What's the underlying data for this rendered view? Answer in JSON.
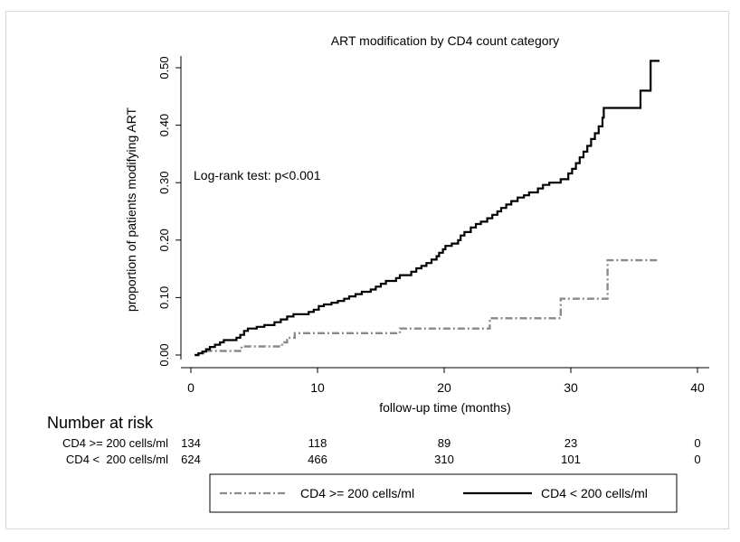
{
  "chart_data": {
    "type": "line",
    "subtype": "kaplan-meier-cumulative-incidence",
    "title": "ART modification by CD4 count category",
    "xlabel": "follow-up time (months)",
    "ylabel": "proportion of patients modifying ART",
    "xlim": [
      0,
      40
    ],
    "ylim": [
      0,
      0.5
    ],
    "x_ticks": [
      0,
      10,
      20,
      30,
      40
    ],
    "y_ticks": [
      0.0,
      0.1,
      0.2,
      0.3,
      0.4,
      0.5
    ],
    "x_tick_labels": [
      "0",
      "10",
      "20",
      "30",
      "40"
    ],
    "y_tick_labels": [
      "0.00",
      "0.10",
      "0.20",
      "0.30",
      "0.40",
      "0.50"
    ],
    "annotation": "Log-rank test: p<0.001",
    "series": [
      {
        "name": "CD4 >= 200 cells/ml",
        "style": "dash-dot",
        "color": "#8a8a8a",
        "steps": [
          [
            0.3,
            0.0
          ],
          [
            0.6,
            0.003
          ],
          [
            1.0,
            0.007
          ],
          [
            4.0,
            0.015
          ],
          [
            7.2,
            0.022
          ],
          [
            7.6,
            0.03
          ],
          [
            8.2,
            0.038
          ],
          [
            16.5,
            0.046
          ],
          [
            23.6,
            0.064
          ],
          [
            29.2,
            0.098
          ],
          [
            32.9,
            0.165
          ],
          [
            37.0,
            0.165
          ]
        ]
      },
      {
        "name": "CD4 < 200 cells/ml",
        "style": "solid",
        "color": "#000000",
        "steps": [
          [
            0.3,
            0.0
          ],
          [
            0.6,
            0.003
          ],
          [
            0.9,
            0.006
          ],
          [
            1.2,
            0.01
          ],
          [
            1.5,
            0.014
          ],
          [
            1.9,
            0.018
          ],
          [
            2.3,
            0.022
          ],
          [
            2.6,
            0.026
          ],
          [
            3.6,
            0.03
          ],
          [
            3.9,
            0.035
          ],
          [
            4.2,
            0.042
          ],
          [
            4.5,
            0.046
          ],
          [
            5.2,
            0.049
          ],
          [
            5.8,
            0.052
          ],
          [
            6.6,
            0.057
          ],
          [
            7.1,
            0.062
          ],
          [
            7.6,
            0.067
          ],
          [
            8.1,
            0.071
          ],
          [
            9.3,
            0.075
          ],
          [
            9.7,
            0.079
          ],
          [
            10.1,
            0.085
          ],
          [
            10.5,
            0.088
          ],
          [
            11.1,
            0.091
          ],
          [
            11.6,
            0.094
          ],
          [
            12.1,
            0.098
          ],
          [
            12.5,
            0.102
          ],
          [
            13.0,
            0.106
          ],
          [
            13.5,
            0.11
          ],
          [
            14.2,
            0.114
          ],
          [
            14.6,
            0.119
          ],
          [
            15.0,
            0.124
          ],
          [
            15.4,
            0.129
          ],
          [
            16.2,
            0.134
          ],
          [
            16.5,
            0.139
          ],
          [
            17.4,
            0.145
          ],
          [
            17.8,
            0.151
          ],
          [
            18.2,
            0.155
          ],
          [
            18.6,
            0.16
          ],
          [
            19.0,
            0.166
          ],
          [
            19.4,
            0.172
          ],
          [
            19.6,
            0.178
          ],
          [
            19.9,
            0.184
          ],
          [
            20.1,
            0.19
          ],
          [
            20.6,
            0.194
          ],
          [
            21.1,
            0.2
          ],
          [
            21.3,
            0.208
          ],
          [
            21.6,
            0.214
          ],
          [
            22.1,
            0.222
          ],
          [
            22.5,
            0.228
          ],
          [
            22.9,
            0.232
          ],
          [
            23.4,
            0.238
          ],
          [
            23.8,
            0.244
          ],
          [
            24.2,
            0.25
          ],
          [
            24.5,
            0.256
          ],
          [
            24.9,
            0.262
          ],
          [
            25.3,
            0.268
          ],
          [
            25.8,
            0.274
          ],
          [
            26.3,
            0.278
          ],
          [
            26.7,
            0.283
          ],
          [
            27.4,
            0.29
          ],
          [
            27.8,
            0.296
          ],
          [
            28.3,
            0.3
          ],
          [
            29.2,
            0.306
          ],
          [
            29.8,
            0.316
          ],
          [
            30.1,
            0.324
          ],
          [
            30.4,
            0.334
          ],
          [
            30.7,
            0.344
          ],
          [
            31.0,
            0.354
          ],
          [
            31.3,
            0.364
          ],
          [
            31.6,
            0.376
          ],
          [
            31.9,
            0.386
          ],
          [
            32.2,
            0.398
          ],
          [
            32.5,
            0.413
          ],
          [
            32.6,
            0.43
          ],
          [
            35.5,
            0.46
          ],
          [
            36.3,
            0.512
          ],
          [
            37.0,
            0.512
          ]
        ]
      }
    ],
    "risk_table": {
      "heading": "Number at risk",
      "times": [
        0,
        10,
        20,
        30,
        40
      ],
      "rows": [
        {
          "label": "CD4 >= 200 cells/ml",
          "counts": [
            "134",
            "118",
            "89",
            "23",
            "0"
          ]
        },
        {
          "label": "CD4 <  200 cells/ml",
          "counts": [
            "624",
            "466",
            "310",
            "101",
            "0"
          ]
        }
      ]
    },
    "legend": {
      "position": "bottom",
      "entries": [
        "CD4 >= 200 cells/ml",
        "CD4 < 200 cells/ml"
      ]
    }
  }
}
